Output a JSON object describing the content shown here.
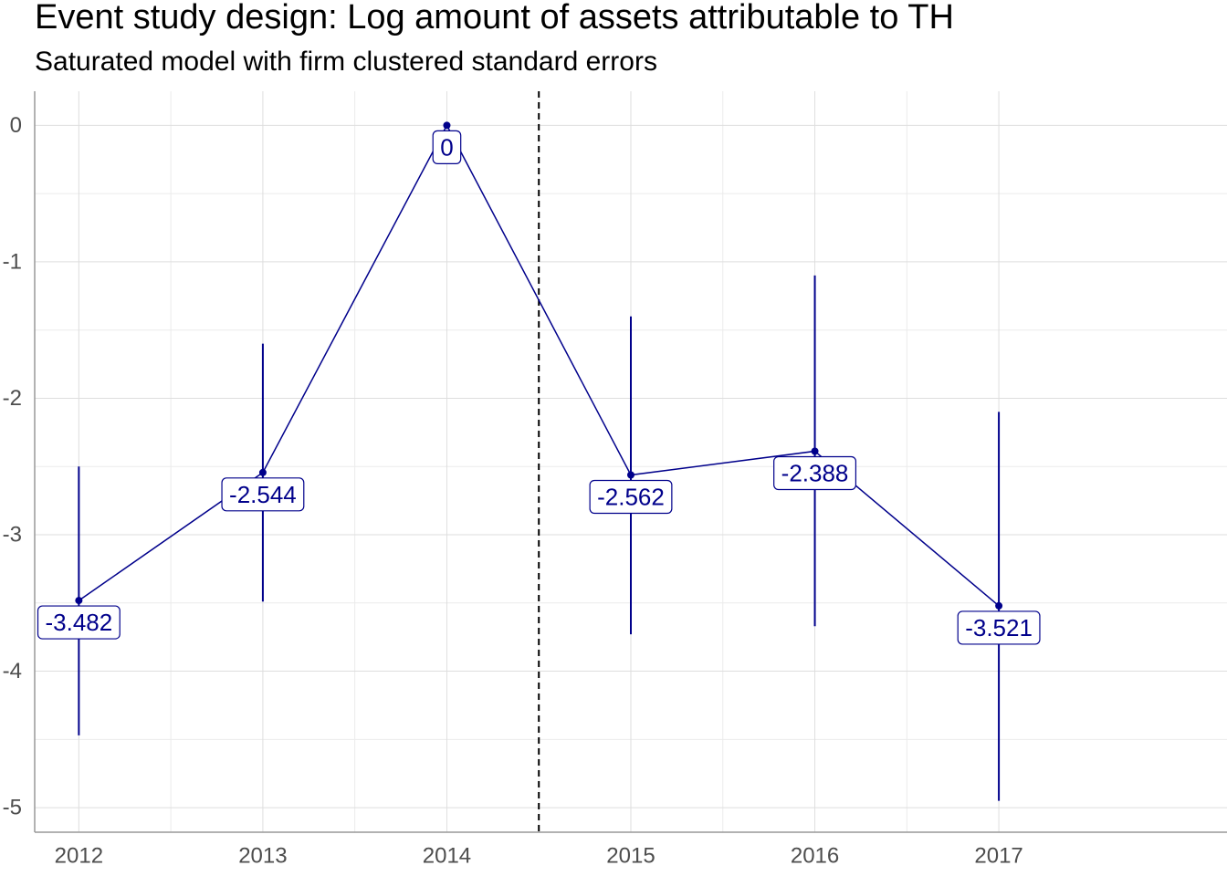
{
  "colors": {
    "series": "#00008B",
    "grid_major": "#DEDEDE",
    "grid_minor": "#EBEBEB",
    "axis": "#999999",
    "label_fill": "#ffffff",
    "vline": "#000000"
  },
  "chart_data": {
    "type": "line",
    "title": "Event study design: Log amount of assets attributable to TH",
    "subtitle": "Saturated model with firm clustered standard errors",
    "xlabel": "",
    "ylabel": "",
    "x": [
      2012,
      2013,
      2014,
      2015,
      2016,
      2017
    ],
    "values": [
      -3.482,
      -2.544,
      0,
      -2.562,
      -2.388,
      -3.521
    ],
    "labels": [
      "-3.482",
      "-2.544",
      "0",
      "-2.562",
      "-2.388",
      "-3.521"
    ],
    "ci_low": [
      -4.47,
      -3.49,
      0,
      -3.73,
      -3.67,
      -4.95
    ],
    "ci_high": [
      -2.5,
      -1.6,
      0,
      -1.4,
      -1.1,
      -2.1
    ],
    "xlim": [
      2011.76,
      2018.24
    ],
    "ylim": [
      -5.18,
      0.25
    ],
    "x_ticks": [
      "2012",
      "2013",
      "2014",
      "2015",
      "2016",
      "2017"
    ],
    "y_ticks": [
      0,
      -1,
      -2,
      -3,
      -4,
      -5
    ],
    "y_tick_labels": [
      "0",
      "-1",
      "-2",
      "-3",
      "-4",
      "-5"
    ],
    "vline_x": 2014.5,
    "vline_style": "dashed",
    "grid": true,
    "legend": "none"
  }
}
